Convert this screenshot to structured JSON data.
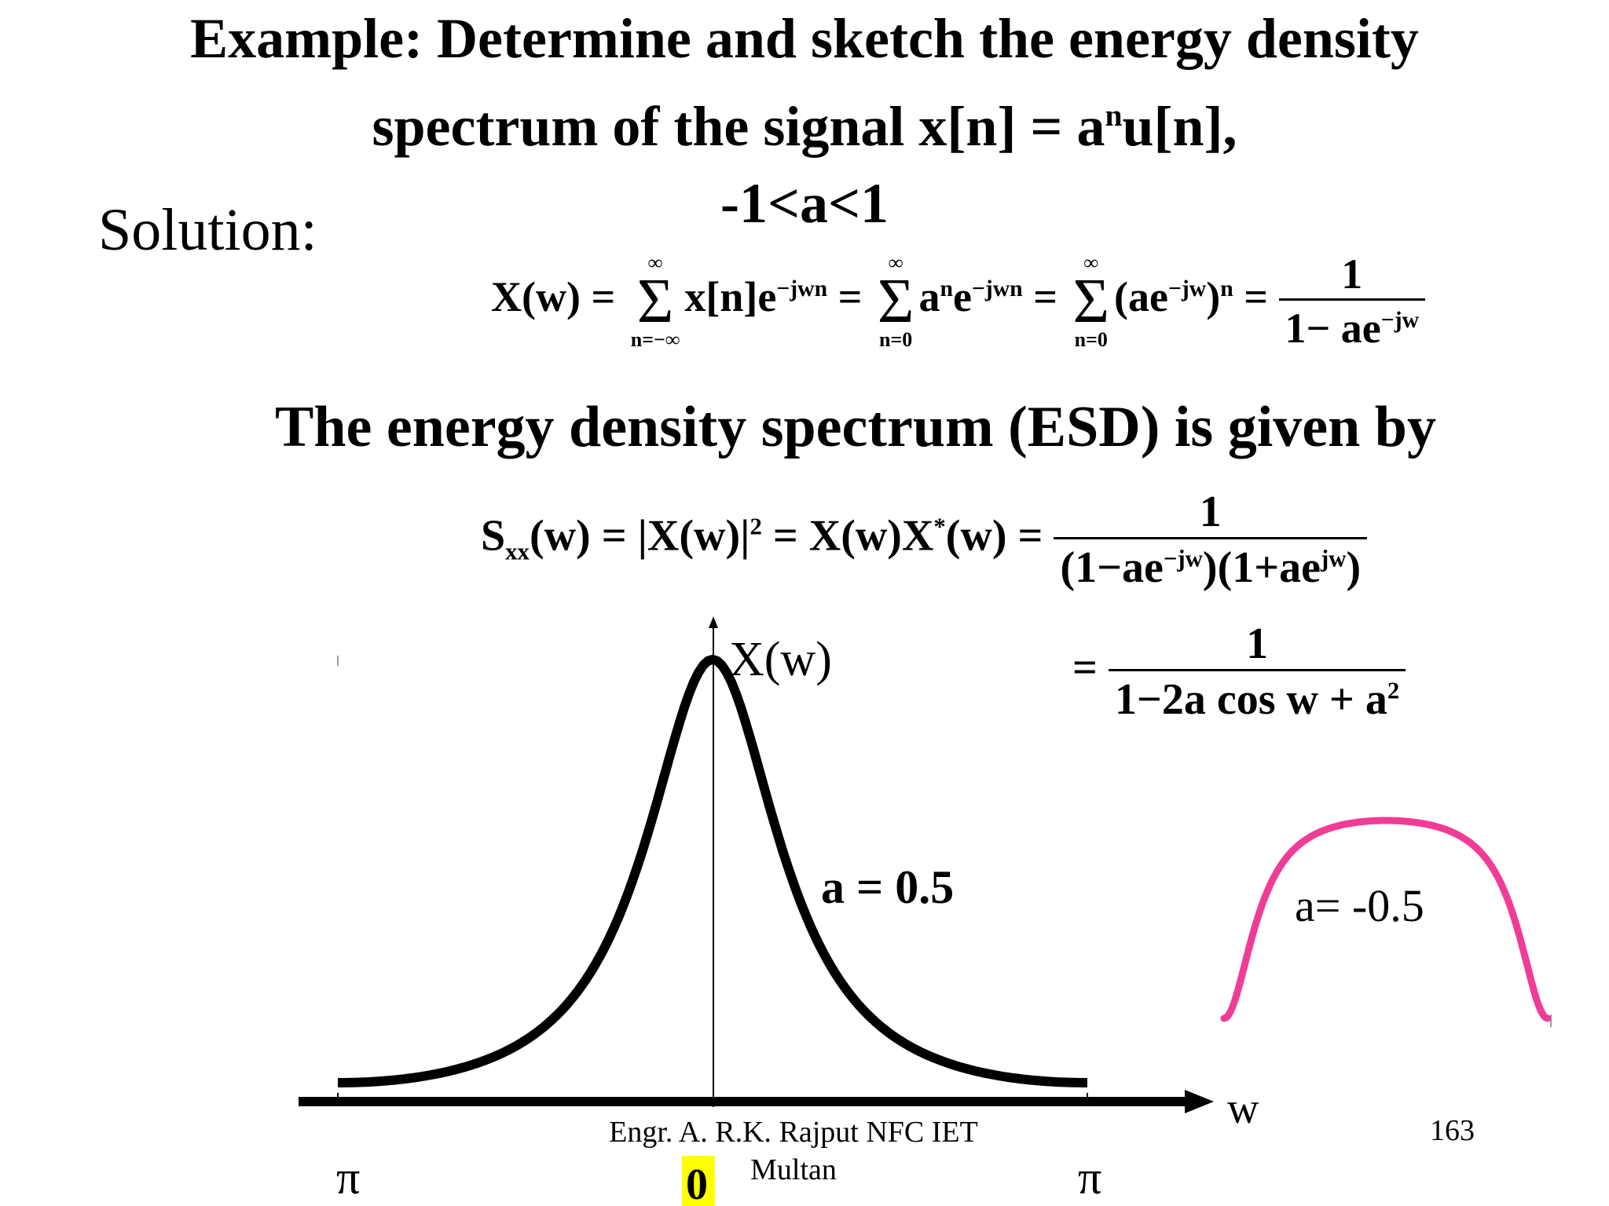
{
  "title": {
    "line1": "Example:  Determine and sketch the energy density",
    "line2": "spectrum of the signal x[n]  = a",
    "line2_sup": "n",
    "line2_end": "u[n],",
    "line3": "-1<a<1"
  },
  "solution_label": "Solution:",
  "eq1": {
    "lhs": "X(w) =",
    "sum1_top": "∞",
    "sum1_bot": "n=−∞",
    "term1": "x[n]e",
    "term1_sup": "−jwn",
    "eq_a": "=",
    "sum2_top": "∞",
    "sum2_bot": "n=0",
    "term2a": "a",
    "term2a_sup": "n",
    "term2b": "e",
    "term2b_sup": "−jwn",
    "eq_b": "=",
    "sum3_top": "∞",
    "sum3_bot": "n=0",
    "term3": "(ae",
    "term3_sup": "−jw",
    "term3_end": ")",
    "term3_pow": "n",
    "eq_c": "=",
    "frac_num": "1",
    "frac_den": "1− ae",
    "frac_den_sup": "−jw"
  },
  "esd_heading": "The energy density spectrum (ESD) is given by",
  "eq2": {
    "lhs": "S",
    "lhs_sub": "xx",
    "lhs_rest": "(w) = |X(w)|",
    "lhs_pow": "2",
    "mid": " = X(w)X",
    "mid_sup": "*",
    "mid_rest": "(w) =",
    "frac_num": "1",
    "frac_den_a": "(1−ae",
    "frac_den_a_sup": "−jw",
    "frac_den_b": ")(1+ae",
    "frac_den_b_sup": "jw",
    "frac_den_c": ")"
  },
  "eq3": {
    "eq": "=",
    "frac_num": "1",
    "frac_den": "1−2a cos w + a",
    "frac_den_sup": "2"
  },
  "plot": {
    "y_axis_label": "X(w)",
    "x_axis_label": "w",
    "curve1_label": "a = 0.5",
    "curve2_label": "a= -0.5",
    "left_tick": "π",
    "right_tick": "π",
    "center_tick": "0",
    "curve1_color": "#000000",
    "curve2_color": "#f03c96",
    "center_tick_bg": "#ffff00"
  },
  "footer": {
    "line1": "Engr. A. R.K. Rajput NFC IET",
    "line2": "Multan"
  },
  "page_number": "163"
}
